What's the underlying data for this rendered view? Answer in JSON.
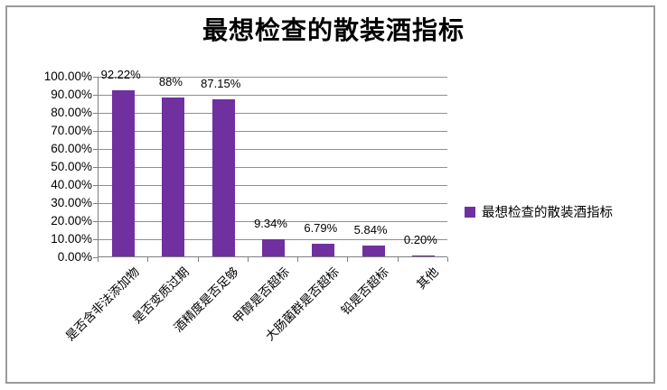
{
  "window": {
    "background": "#FFFFFF",
    "border_color": "#9B9B9B"
  },
  "chart": {
    "title": "最想检查的散装酒指标",
    "legend": {
      "label": "最想检查的散装酒指标",
      "swatch_icon": "legend-color-swatch"
    },
    "colors": {
      "bar": "#7030A0",
      "gridline": "#8F8F8F",
      "axis": "#7F7F7F",
      "text": "#000000"
    }
  },
  "chart_data": {
    "type": "bar",
    "title": "最想检查的散装酒指标",
    "categories": [
      "是否含非法添加物",
      "是否变质过期",
      "酒精度是否足够",
      "甲醇是否超标",
      "大肠菌群是否超标",
      "铅是否超标",
      "其他"
    ],
    "values": [
      92.22,
      88,
      87.15,
      9.34,
      6.79,
      5.84,
      0.2
    ],
    "data_labels": [
      "92.22%",
      "88%",
      "87.15%",
      "9.34%",
      "6.79%",
      "5.84%",
      "0.20%"
    ],
    "y_tick_labels": [
      "100.00%",
      "90.00%",
      "80.00%",
      "70.00%",
      "60.00%",
      "50.00%",
      "40.00%",
      "30.00%",
      "20.00%",
      "10.00%",
      "0.00%"
    ],
    "ylim": [
      0,
      100
    ],
    "y_tick_step": 10,
    "grid": true,
    "xlabel": "",
    "ylabel": "",
    "legend_position": "right",
    "legend_entries": [
      "最想检查的散装酒指标"
    ]
  }
}
